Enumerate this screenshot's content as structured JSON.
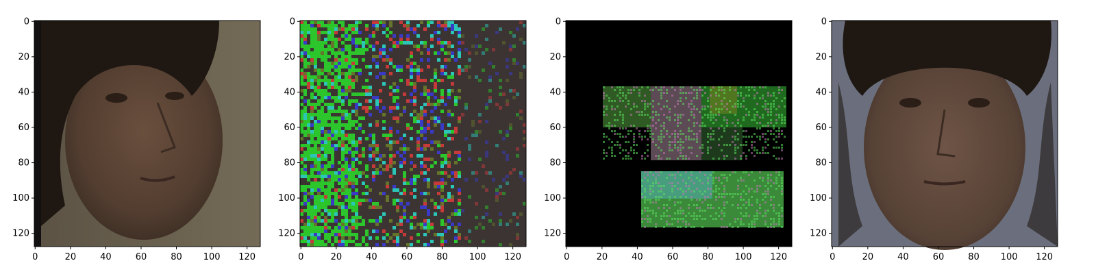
{
  "figure": {
    "panels": [
      {
        "id": "original-face",
        "content": "photo of a man's face, turned slightly right, beige background",
        "x_ticks": [
          "0",
          "20",
          "40",
          "60",
          "80",
          "100",
          "120"
        ],
        "y_ticks": [
          "0",
          "20",
          "40",
          "60",
          "80",
          "100",
          "120"
        ]
      },
      {
        "id": "noise-pattern",
        "content": "dense multicolour (green, blue, red) pixel noise with faint face silhouette",
        "x_ticks": [
          "0",
          "20",
          "40",
          "60",
          "80",
          "100",
          "120"
        ],
        "y_ticks": [
          "0",
          "20",
          "40",
          "60",
          "80",
          "100",
          "120"
        ]
      },
      {
        "id": "block-patches",
        "content": "black background with green/pink rectangular texture patches",
        "x_ticks": [
          "0",
          "20",
          "40",
          "60",
          "80",
          "100",
          "120"
        ],
        "y_ticks": [
          "0",
          "20",
          "40",
          "60",
          "80",
          "100",
          "120"
        ]
      },
      {
        "id": "target-face",
        "content": "frontal photo of a man's face, grey-blue background",
        "x_ticks": [
          "0",
          "20",
          "40",
          "60",
          "80",
          "100",
          "120"
        ],
        "y_ticks": [
          "0",
          "20",
          "40",
          "60",
          "80",
          "100",
          "120"
        ]
      }
    ],
    "axis_range": [
      0,
      127
    ],
    "colors": {
      "skin": "#5a4536",
      "hair": "#1e1712",
      "bg_beige": "#6e6554",
      "bg_grey": "#6b6f7d",
      "noise_green": "#2bd62b",
      "noise_blue": "#3b3bd6",
      "patch_black": "#000000"
    }
  }
}
